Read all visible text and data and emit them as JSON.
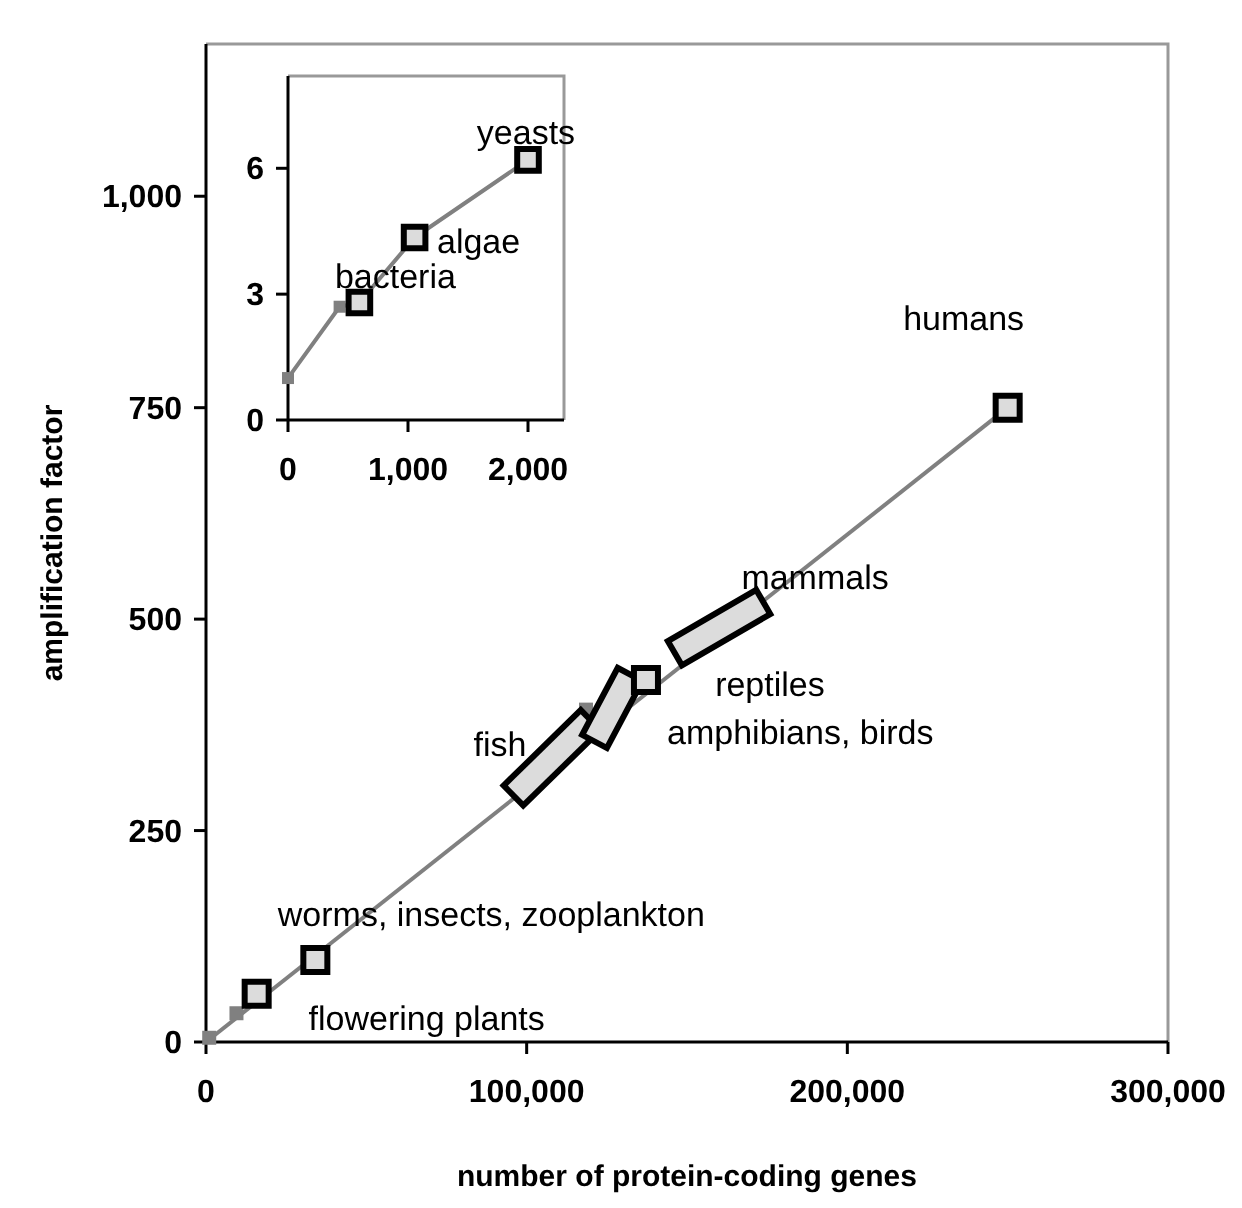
{
  "chart_data": [
    {
      "type": "scatter",
      "xlabel": "number of protein-coding genes",
      "ylabel": "amplification factor",
      "xlim": [
        0,
        300000
      ],
      "ylim": [
        0,
        1180
      ],
      "xticks": [
        0,
        {
          "value": 100000,
          "label": "100,000"
        },
        {
          "value": 200000,
          "label": "200,000"
        },
        {
          "value": 300000,
          "label": "300,000"
        }
      ],
      "yticks": [
        0,
        250,
        500,
        750,
        {
          "value": 1000,
          "label": "1,000"
        }
      ],
      "grid": false,
      "series": [
        {
          "type": "line",
          "color": "#808080",
          "x": [
            0,
            250000
          ],
          "values": [
            0,
            750
          ],
          "marker": "none",
          "line_style": "solid"
        },
        {
          "color": "#808080",
          "x": [
            1000,
            9500,
            118500
          ],
          "values": [
            5,
            34,
            393
          ],
          "marker": "square"
        },
        {
          "type": "line",
          "color": "#dcdcdc",
          "x": [
            99000,
            116800
          ],
          "values": [
            303,
            369
          ],
          "marker": "none",
          "line_style": "solid"
        },
        {
          "type": "line",
          "color": "#dcdcdc",
          "x": [
            123200,
            130200
          ],
          "values": [
            370,
            420
          ],
          "marker": "none",
          "line_style": "solid"
        },
        {
          "type": "line",
          "color": "#dcdcdc",
          "x": [
            150000,
            170000
          ],
          "values": [
            468,
            512
          ],
          "marker": "none",
          "line_style": "solid"
        },
        {
          "color": "#dcdcdc",
          "x": [
            15800,
            34100,
            137200,
            250000
          ],
          "values": [
            57,
            97,
            428,
            750
          ],
          "marker": "square"
        }
      ],
      "annotations": [
        {
          "text": "flowering plants",
          "x": 15800,
          "y": 57
        },
        {
          "text": "worms, insects, zooplankton",
          "x": 34100,
          "y": 97
        },
        {
          "text": "fish",
          "x": 107900,
          "y": 336
        },
        {
          "text": "amphibians, birds",
          "x": 126700,
          "y": 395
        },
        {
          "text": "reptiles",
          "x": 137200,
          "y": 428
        },
        {
          "text": "mammals",
          "x": 160000,
          "y": 490
        },
        {
          "text": "humans",
          "x": 250000,
          "y": 750
        }
      ]
    },
    {
      "type": "scatter",
      "xlim": [
        0,
        2300
      ],
      "ylim": [
        0,
        8.2
      ],
      "xticks": [
        0,
        {
          "value": 1000,
          "label": "1,000"
        },
        {
          "value": 2000,
          "label": "2,000"
        }
      ],
      "yticks": [
        0,
        3,
        6
      ],
      "grid": false,
      "series": [
        {
          "type": "line",
          "color": "#808080",
          "x": [
            0,
            430,
            595,
            1055,
            2000
          ],
          "values": [
            1,
            2.7,
            2.8,
            4.35,
            6.2
          ],
          "marker": "none",
          "line_style": "solid"
        },
        {
          "color": "#808080",
          "x": [
            0,
            430
          ],
          "values": [
            1,
            2.7
          ],
          "marker": "square"
        },
        {
          "color": "#dcdcdc",
          "x": [
            595,
            1055,
            2000
          ],
          "values": [
            2.8,
            4.35,
            6.2
          ],
          "marker": "square"
        }
      ],
      "annotations": [
        {
          "text": "bacteria",
          "x": 595,
          "y": 2.8
        },
        {
          "text": "algae",
          "x": 1055,
          "y": 4.35
        },
        {
          "text": "yeasts",
          "x": 2000,
          "y": 6.2
        }
      ]
    }
  ]
}
